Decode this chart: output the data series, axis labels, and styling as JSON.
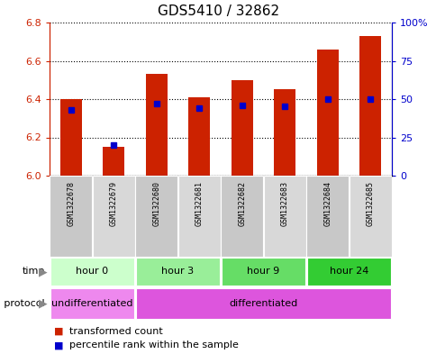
{
  "title": "GDS5410 / 32862",
  "samples": [
    "GSM1322678",
    "GSM1322679",
    "GSM1322680",
    "GSM1322681",
    "GSM1322682",
    "GSM1322683",
    "GSM1322684",
    "GSM1322685"
  ],
  "transformed_counts": [
    6.4,
    6.15,
    6.53,
    6.41,
    6.5,
    6.45,
    6.66,
    6.73
  ],
  "percentile_ranks": [
    43,
    20,
    47,
    44,
    46,
    45,
    50,
    50
  ],
  "ylim": [
    6.0,
    6.8
  ],
  "yticks_left": [
    6.0,
    6.2,
    6.4,
    6.6,
    6.8
  ],
  "yticks_right": [
    0,
    25,
    50,
    75,
    100
  ],
  "yticks_right_labels": [
    "0",
    "25",
    "50",
    "75",
    "100%"
  ],
  "bar_color": "#cc2200",
  "percentile_color": "#0000cc",
  "bar_width": 0.5,
  "time_groups": [
    {
      "label": "hour 0",
      "start": 0,
      "end": 2,
      "color": "#ccffcc"
    },
    {
      "label": "hour 3",
      "start": 2,
      "end": 4,
      "color": "#99ee99"
    },
    {
      "label": "hour 9",
      "start": 4,
      "end": 6,
      "color": "#66dd66"
    },
    {
      "label": "hour 24",
      "start": 6,
      "end": 8,
      "color": "#33cc33"
    }
  ],
  "growth_groups": [
    {
      "label": "undifferentiated",
      "start": 0,
      "end": 2,
      "color": "#ee88ee"
    },
    {
      "label": "differentiated",
      "start": 2,
      "end": 8,
      "color": "#dd55dd"
    }
  ],
  "legend_items": [
    {
      "label": "transformed count",
      "color": "#cc2200"
    },
    {
      "label": "percentile rank within the sample",
      "color": "#0000cc"
    }
  ],
  "ylabel_left_color": "#cc2200",
  "ylabel_right_color": "#0000cc",
  "base_value": 6.0,
  "figsize": [
    4.85,
    3.93
  ],
  "dpi": 100
}
